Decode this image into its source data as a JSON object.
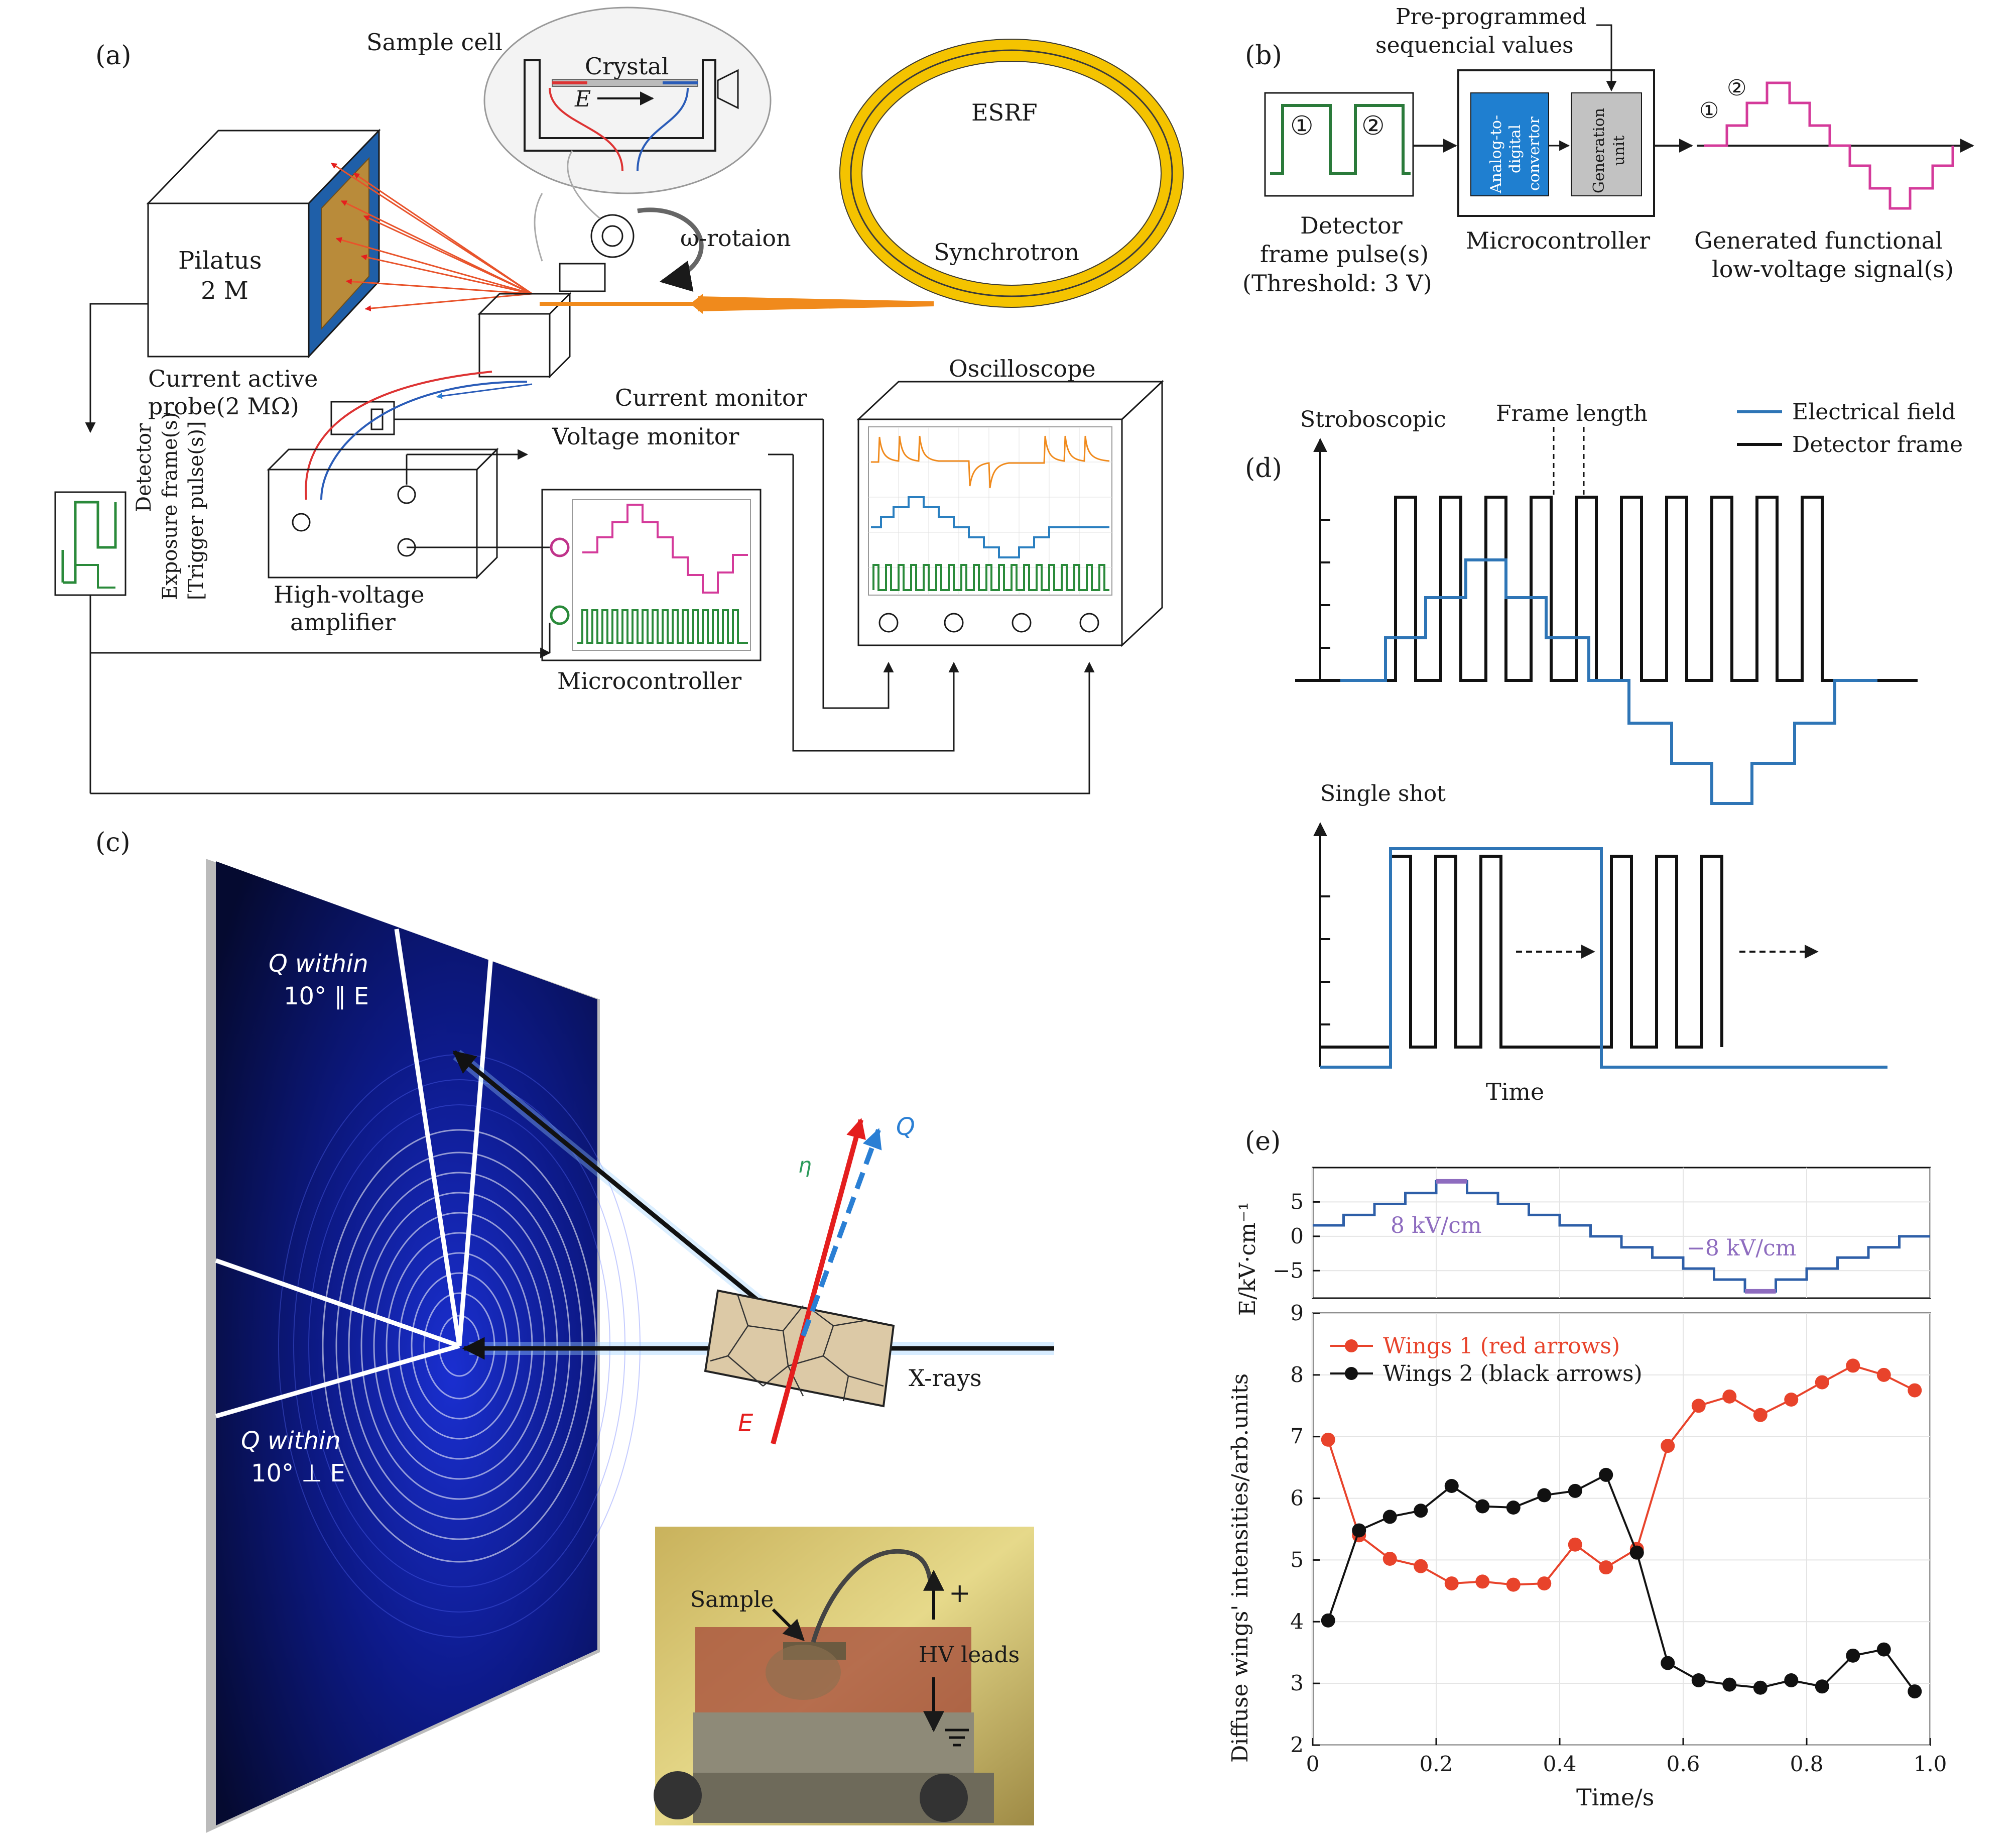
{
  "panel_labels": {
    "a": "(a)",
    "b": "(b)",
    "c": "(c)",
    "d": "(d)",
    "e": "(e)"
  },
  "panel_a": {
    "sample_cell": "Sample cell",
    "crystal": "Crystal",
    "field_symbol": "E",
    "esrf": "ESRF",
    "synchrotron": "Synchrotron",
    "rotation": "ω-rotaion",
    "pilatus": [
      "Pilatus",
      "2 M"
    ],
    "probe": [
      "Current active",
      "probe(2 MΩ)"
    ],
    "current_monitor": "Current monitor",
    "voltage_monitor": "Voltage monitor",
    "oscilloscope": "Oscilloscope",
    "amplifier": [
      "High-voltage",
      "amplifier"
    ],
    "microcontroller": "Microcontroller",
    "detector": [
      "Detector",
      "Exposure frame(s)",
      "[Trigger pulse(s)]"
    ]
  },
  "panel_b": {
    "preprogrammed": [
      "Pre-programmed",
      "sequencial values"
    ],
    "pulse_marks": [
      "①",
      "②"
    ],
    "adc": [
      "Analog-to-",
      "digital",
      "convertor"
    ],
    "generation": [
      "Generation",
      "unit"
    ],
    "detector": [
      "Detector",
      "frame pulse(s)",
      "(Threshold: 3 V)"
    ],
    "microcontroller": "Microcontroller",
    "generated": [
      "Generated functional",
      "low-voltage signal(s)"
    ]
  },
  "panel_c": {
    "q_parallel": [
      "Q within",
      "10° ∥ E"
    ],
    "q_perp": [
      "Q within",
      "10° ⊥ E"
    ],
    "q": "Q",
    "eta": "η",
    "e": "E",
    "xrays": "X-rays",
    "sample": "Sample",
    "hv_leads": "HV leads",
    "plus": "+"
  },
  "panel_d": {
    "stroboscopic": "Stroboscopic",
    "frame_length": "Frame length",
    "legend": [
      "Electrical field",
      "Detector frame"
    ],
    "single_shot": "Single shot",
    "time": "Time",
    "colors": {
      "field": "#2e75b6",
      "frame": "#111111"
    }
  },
  "chart_data": {
    "type": "line",
    "xlabel": "Time/s",
    "xlim": [
      0,
      1.0
    ],
    "xticks": [
      "0",
      "0.2",
      "0.4",
      "0.6",
      "0.8",
      "1.0"
    ],
    "top": {
      "ylabel": "E/kV·cm⁻¹",
      "ylim": [
        -9,
        10
      ],
      "yticks": [
        "5",
        "0",
        "−5"
      ],
      "step_edges": [
        0,
        0.05,
        0.1,
        0.15,
        0.2,
        0.25,
        0.3,
        0.35,
        0.4,
        0.45,
        0.5,
        0.55,
        0.6,
        0.65,
        0.7,
        0.75,
        0.8,
        0.85,
        0.9,
        0.95,
        1.0
      ],
      "values": [
        1.6,
        3.1,
        4.7,
        6.3,
        8,
        6.3,
        4.7,
        3.1,
        1.6,
        0,
        -1.6,
        -3.1,
        -4.7,
        -6.3,
        -8,
        -6.3,
        -4.7,
        -3.1,
        -1.6,
        0
      ],
      "annotations": [
        "8 kV/cm",
        "−8 kV/cm"
      ],
      "colors": {
        "line": "#2e5fa8",
        "highlight": "#8e6cbf"
      }
    },
    "bottom": {
      "ylabel": "Diffuse wings' intensities/arb.units",
      "ylim": [
        2,
        9
      ],
      "yticks": [
        "2",
        "3",
        "4",
        "5",
        "6",
        "7",
        "8",
        "9"
      ],
      "x": [
        0.025,
        0.075,
        0.125,
        0.175,
        0.225,
        0.275,
        0.325,
        0.375,
        0.425,
        0.475,
        0.525,
        0.575,
        0.625,
        0.675,
        0.725,
        0.775,
        0.825,
        0.875,
        0.925,
        0.975
      ],
      "series": [
        {
          "name": "Wings 1 (red arrows)",
          "color": "#e8432b",
          "values": [
            6.95,
            5.4,
            5.02,
            4.9,
            4.62,
            4.65,
            4.6,
            4.62,
            5.25,
            4.88,
            5.18,
            6.85,
            7.5,
            7.65,
            7.35,
            7.6,
            7.88,
            8.15,
            8.0,
            7.75
          ]
        },
        {
          "name": "Wings 2 (black arrows)",
          "color": "#111111",
          "values": [
            4.02,
            5.48,
            5.7,
            5.8,
            6.2,
            5.87,
            5.85,
            6.05,
            6.12,
            6.38,
            5.12,
            3.33,
            3.05,
            2.98,
            2.93,
            3.05,
            2.95,
            3.45,
            3.55,
            2.87
          ]
        }
      ]
    }
  }
}
